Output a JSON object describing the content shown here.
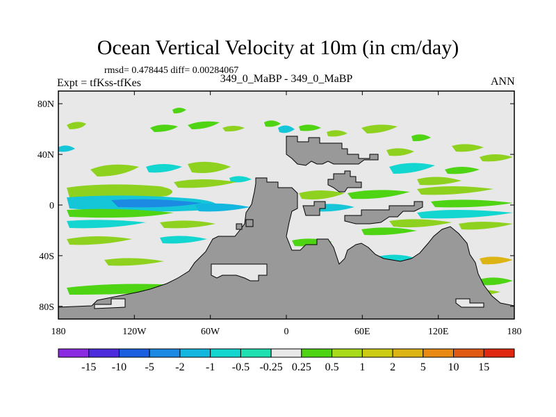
{
  "title": "Ocean Vertical Velocity at 10m (in cm/day)",
  "stats": "rmsd= 0.478445 diff= 0.00284067",
  "experiment": "Expt = tfKss-tfKes",
  "case_label": "349_0_MaBP - 349_0_MaBP",
  "season": "ANN",
  "axes": {
    "x_ticks": [
      {
        "label": "180",
        "value": -180
      },
      {
        "label": "120W",
        "value": -120
      },
      {
        "label": "60W",
        "value": -60
      },
      {
        "label": "0",
        "value": 0
      },
      {
        "label": "60E",
        "value": 60
      },
      {
        "label": "120E",
        "value": 120
      },
      {
        "label": "180",
        "value": 180
      }
    ],
    "y_ticks": [
      {
        "label": "80N",
        "value": 80
      },
      {
        "label": "40N",
        "value": 40
      },
      {
        "label": "0",
        "value": 0
      },
      {
        "label": "40S",
        "value": -40
      },
      {
        "label": "80S",
        "value": -80
      }
    ],
    "lon_range": [
      -180,
      180
    ],
    "lat_range": [
      -90,
      90
    ]
  },
  "colorbar": {
    "colors": [
      "#8a2be2",
      "#4b2bdc",
      "#1a5fe0",
      "#1c8ae3",
      "#12b6de",
      "#14d6d0",
      "#1ee0b0",
      "#e8e8e8",
      "#4fd414",
      "#a8dc1a",
      "#cccc14",
      "#dcb414",
      "#e88a14",
      "#e05a14",
      "#e02810"
    ],
    "labels": [
      "-15",
      "-10",
      "-5",
      "-2",
      "-1",
      "-0.5",
      "-0.25",
      "0.25",
      "0.5",
      "1",
      "2",
      "5",
      "10",
      "15"
    ]
  },
  "colors": {
    "land": "#999999",
    "ocean_neutral": "#e8e8e8",
    "frame": "#000000"
  }
}
